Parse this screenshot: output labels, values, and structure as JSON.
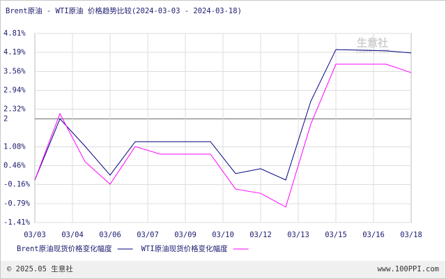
{
  "chart_data": {
    "type": "line",
    "title": "Brent原油 - WTI原油 价格趋势比较(2024-03-03 - 2024-03-18)",
    "x": [
      0,
      1,
      2,
      3,
      4,
      5,
      6,
      7,
      8,
      9,
      10,
      11,
      12,
      13,
      14,
      15
    ],
    "xlim": [
      0,
      15
    ],
    "xticks": [
      {
        "value": 0,
        "label": "03/03"
      },
      {
        "value": 1.5,
        "label": "03/04"
      },
      {
        "value": 3,
        "label": "03/06"
      },
      {
        "value": 4.5,
        "label": "03/07"
      },
      {
        "value": 6,
        "label": "03/09"
      },
      {
        "value": 7.5,
        "label": "03/10"
      },
      {
        "value": 9,
        "label": "03/12"
      },
      {
        "value": 10.5,
        "label": "03/13"
      },
      {
        "value": 12,
        "label": "03/15"
      },
      {
        "value": 13.5,
        "label": "03/16"
      },
      {
        "value": 15,
        "label": "03/18"
      }
    ],
    "ylim": [
      -1.41,
      4.81
    ],
    "yticks": [
      {
        "value": 4.81,
        "label": "4.81%"
      },
      {
        "value": 4.19,
        "label": "4.19%"
      },
      {
        "value": 3.56,
        "label": "3.56%"
      },
      {
        "value": 2.94,
        "label": "2.94%"
      },
      {
        "value": 2.32,
        "label": "2.32%"
      },
      2,
      {
        "value": 1.08,
        "label": "1.08%"
      },
      {
        "value": 0.46,
        "label": "0.46%"
      },
      {
        "value": -0.16,
        "label": "-0.16%"
      },
      {
        "value": -0.79,
        "label": "-0.79%"
      },
      {
        "value": -1.41,
        "label": "-1.41%"
      }
    ],
    "grid": true,
    "series": [
      {
        "name": "Brent原油现货价格变化幅度",
        "color": "#000080",
        "values": [
          -0.01,
          2.0,
          1.1,
          0.15,
          1.25,
          1.25,
          1.25,
          1.25,
          0.2,
          0.36,
          -0.01,
          2.58,
          4.28,
          4.26,
          4.24,
          4.17
        ]
      },
      {
        "name": "WTI原油现货价格变化幅度",
        "color": "#ff00ff",
        "values": [
          -0.01,
          2.17,
          0.59,
          -0.15,
          1.09,
          0.84,
          0.84,
          0.84,
          -0.31,
          -0.45,
          -0.9,
          1.83,
          3.8,
          3.8,
          3.8,
          3.52
        ]
      }
    ],
    "watermark": "生意社",
    "watermark_url": "100PPI.COM",
    "footer_left": "© 2025.05 生意社",
    "footer_right": "www.100PPI.com"
  }
}
